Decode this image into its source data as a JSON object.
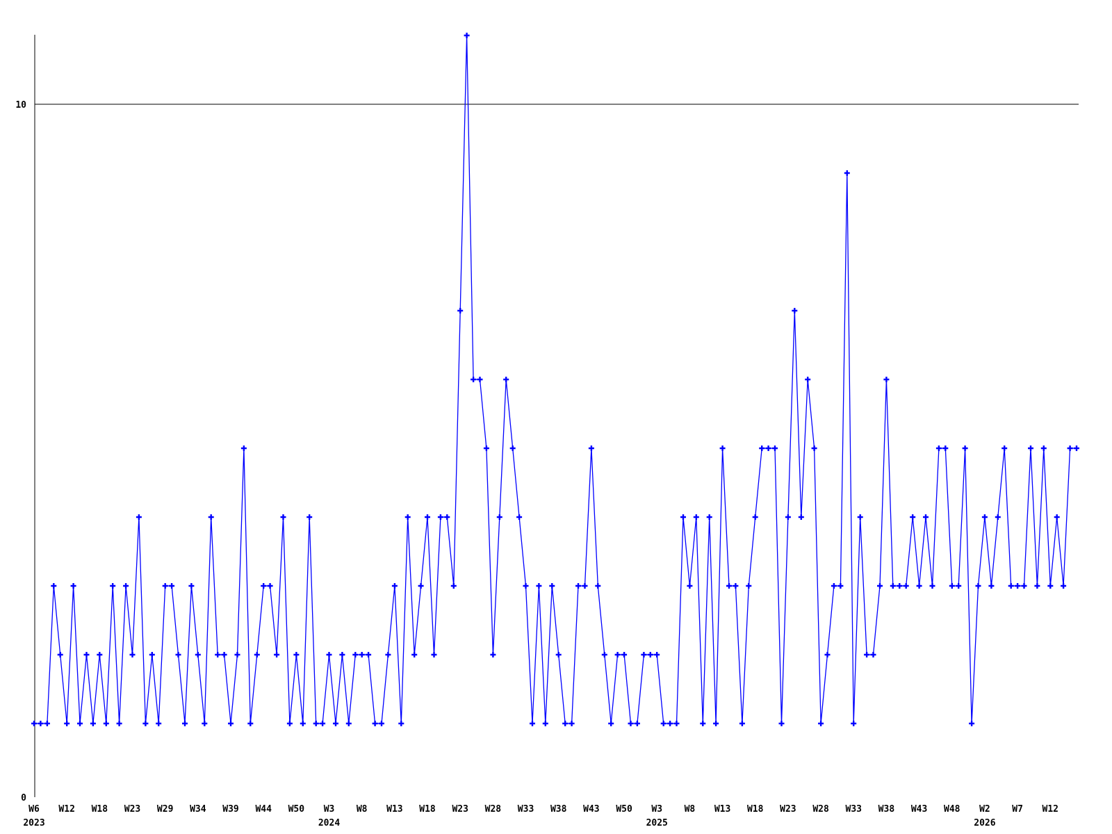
{
  "chart_data": {
    "type": "line",
    "title": "",
    "x_unit": "ISO week",
    "line_color": "#0000ff",
    "axis_color": "#000000",
    "background_color": "#ffffff",
    "marker_style": "plus",
    "grid_on": false,
    "gridline_at_value": 10,
    "ylim": [
      0,
      11.5
    ],
    "yticks": [
      {
        "value": 0,
        "label": "0"
      },
      {
        "value": 10,
        "label": "10"
      }
    ],
    "xticks": [
      {
        "label": "W6",
        "year": "2023"
      },
      {
        "label": "W12"
      },
      {
        "label": "W18"
      },
      {
        "label": "W23"
      },
      {
        "label": "W29"
      },
      {
        "label": "W34"
      },
      {
        "label": "W39"
      },
      {
        "label": "W44"
      },
      {
        "label": "W50"
      },
      {
        "label": "W3",
        "year": "2024"
      },
      {
        "label": "W8"
      },
      {
        "label": "W13"
      },
      {
        "label": "W18"
      },
      {
        "label": "W23"
      },
      {
        "label": "W28"
      },
      {
        "label": "W33"
      },
      {
        "label": "W38"
      },
      {
        "label": "W43"
      },
      {
        "label": "W50"
      },
      {
        "label": "W3",
        "year": "2025"
      },
      {
        "label": "W8"
      },
      {
        "label": "W13"
      },
      {
        "label": "W18"
      },
      {
        "label": "W23"
      },
      {
        "label": "W28"
      },
      {
        "label": "W33"
      },
      {
        "label": "W38"
      },
      {
        "label": "W43"
      },
      {
        "label": "W48"
      },
      {
        "label": "W2",
        "year": "2026"
      },
      {
        "label": "W7"
      },
      {
        "label": "W12"
      }
    ],
    "points_per_tick": 5,
    "values": [
      1,
      1,
      1,
      3,
      2,
      1,
      3,
      1,
      2,
      1,
      2,
      1,
      3,
      1,
      3,
      2,
      4,
      1,
      2,
      1,
      3,
      3,
      2,
      1,
      3,
      2,
      1,
      4,
      2,
      2,
      1,
      2,
      5,
      1,
      2,
      3,
      3,
      2,
      4,
      1,
      2,
      1,
      4,
      1,
      1,
      2,
      1,
      2,
      1,
      2,
      2,
      2,
      1,
      1,
      2,
      3,
      1,
      4,
      2,
      3,
      4,
      2,
      4,
      4,
      3,
      7,
      11,
      6,
      6,
      5,
      2,
      4,
      6,
      5,
      4,
      3,
      1,
      3,
      1,
      3,
      2,
      1,
      1,
      3,
      3,
      5,
      3,
      2,
      1,
      2,
      2,
      1,
      1,
      2,
      2,
      2,
      1,
      1,
      1,
      4,
      3,
      4,
      1,
      4,
      1,
      5,
      3,
      3,
      1,
      3,
      4,
      5,
      5,
      5,
      1,
      4,
      7,
      4,
      6,
      5,
      1,
      2,
      3,
      3,
      9,
      1,
      4,
      2,
      2,
      3,
      6,
      3,
      3,
      3,
      4,
      3,
      4,
      3,
      5,
      5,
      3,
      3,
      5,
      1,
      3,
      4,
      3,
      4,
      5,
      3,
      3,
      3,
      5,
      3,
      5,
      3,
      4,
      3,
      5,
      5
    ]
  }
}
